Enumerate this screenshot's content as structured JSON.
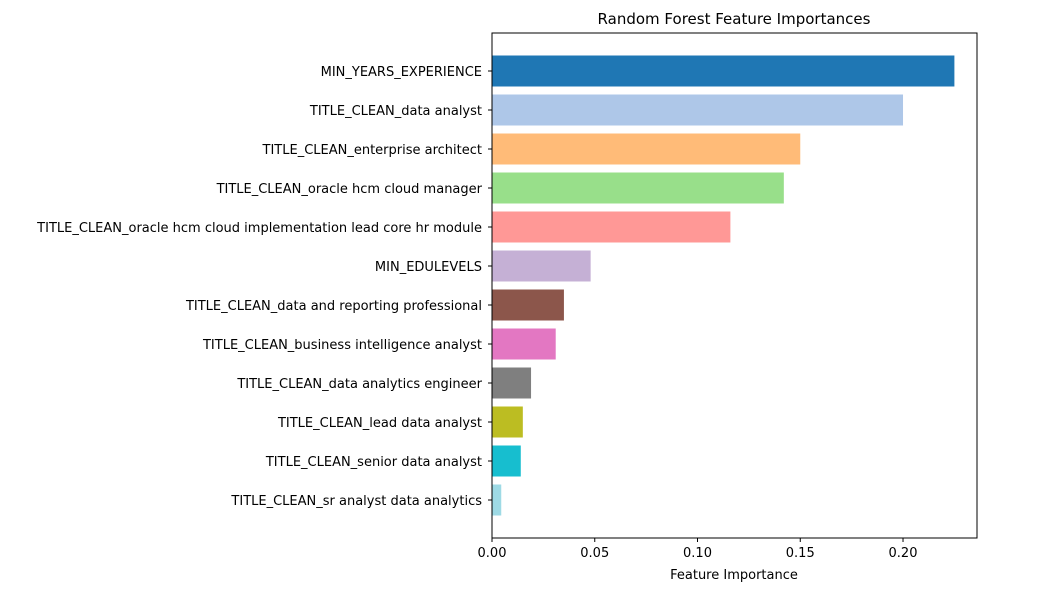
{
  "chart_data": {
    "type": "bar",
    "orientation": "horizontal",
    "title": "Random Forest Feature Importances",
    "xlabel": "Feature Importance",
    "ylabel": "",
    "xlim": [
      0,
      0.236
    ],
    "xticks": [
      0.0,
      0.05,
      0.1,
      0.15,
      0.2
    ],
    "xtick_labels": [
      "0.00",
      "0.05",
      "0.10",
      "0.15",
      "0.20"
    ],
    "grid": false,
    "legend": "none",
    "categories": [
      "MIN_YEARS_EXPERIENCE",
      "TITLE_CLEAN_data analyst",
      "TITLE_CLEAN_enterprise architect",
      "TITLE_CLEAN_oracle hcm cloud manager",
      "TITLE_CLEAN_oracle hcm cloud implementation lead core hr module",
      "MIN_EDULEVELS",
      "TITLE_CLEAN_data and reporting professional",
      "TITLE_CLEAN_business intelligence analyst",
      "TITLE_CLEAN_data analytics engineer",
      "TITLE_CLEAN_lead data analyst",
      "TITLE_CLEAN_senior data analyst",
      "TITLE_CLEAN_sr analyst data analytics"
    ],
    "values": [
      0.225,
      0.2,
      0.15,
      0.142,
      0.116,
      0.048,
      0.035,
      0.031,
      0.019,
      0.015,
      0.014,
      0.0045
    ],
    "colors": [
      "#1f77b4",
      "#aec7e8",
      "#ffbb78",
      "#98df8a",
      "#ff9896",
      "#c5b0d5",
      "#8c564b",
      "#e377c2",
      "#7f7f7f",
      "#bcbd22",
      "#17becf",
      "#9edae5"
    ]
  }
}
